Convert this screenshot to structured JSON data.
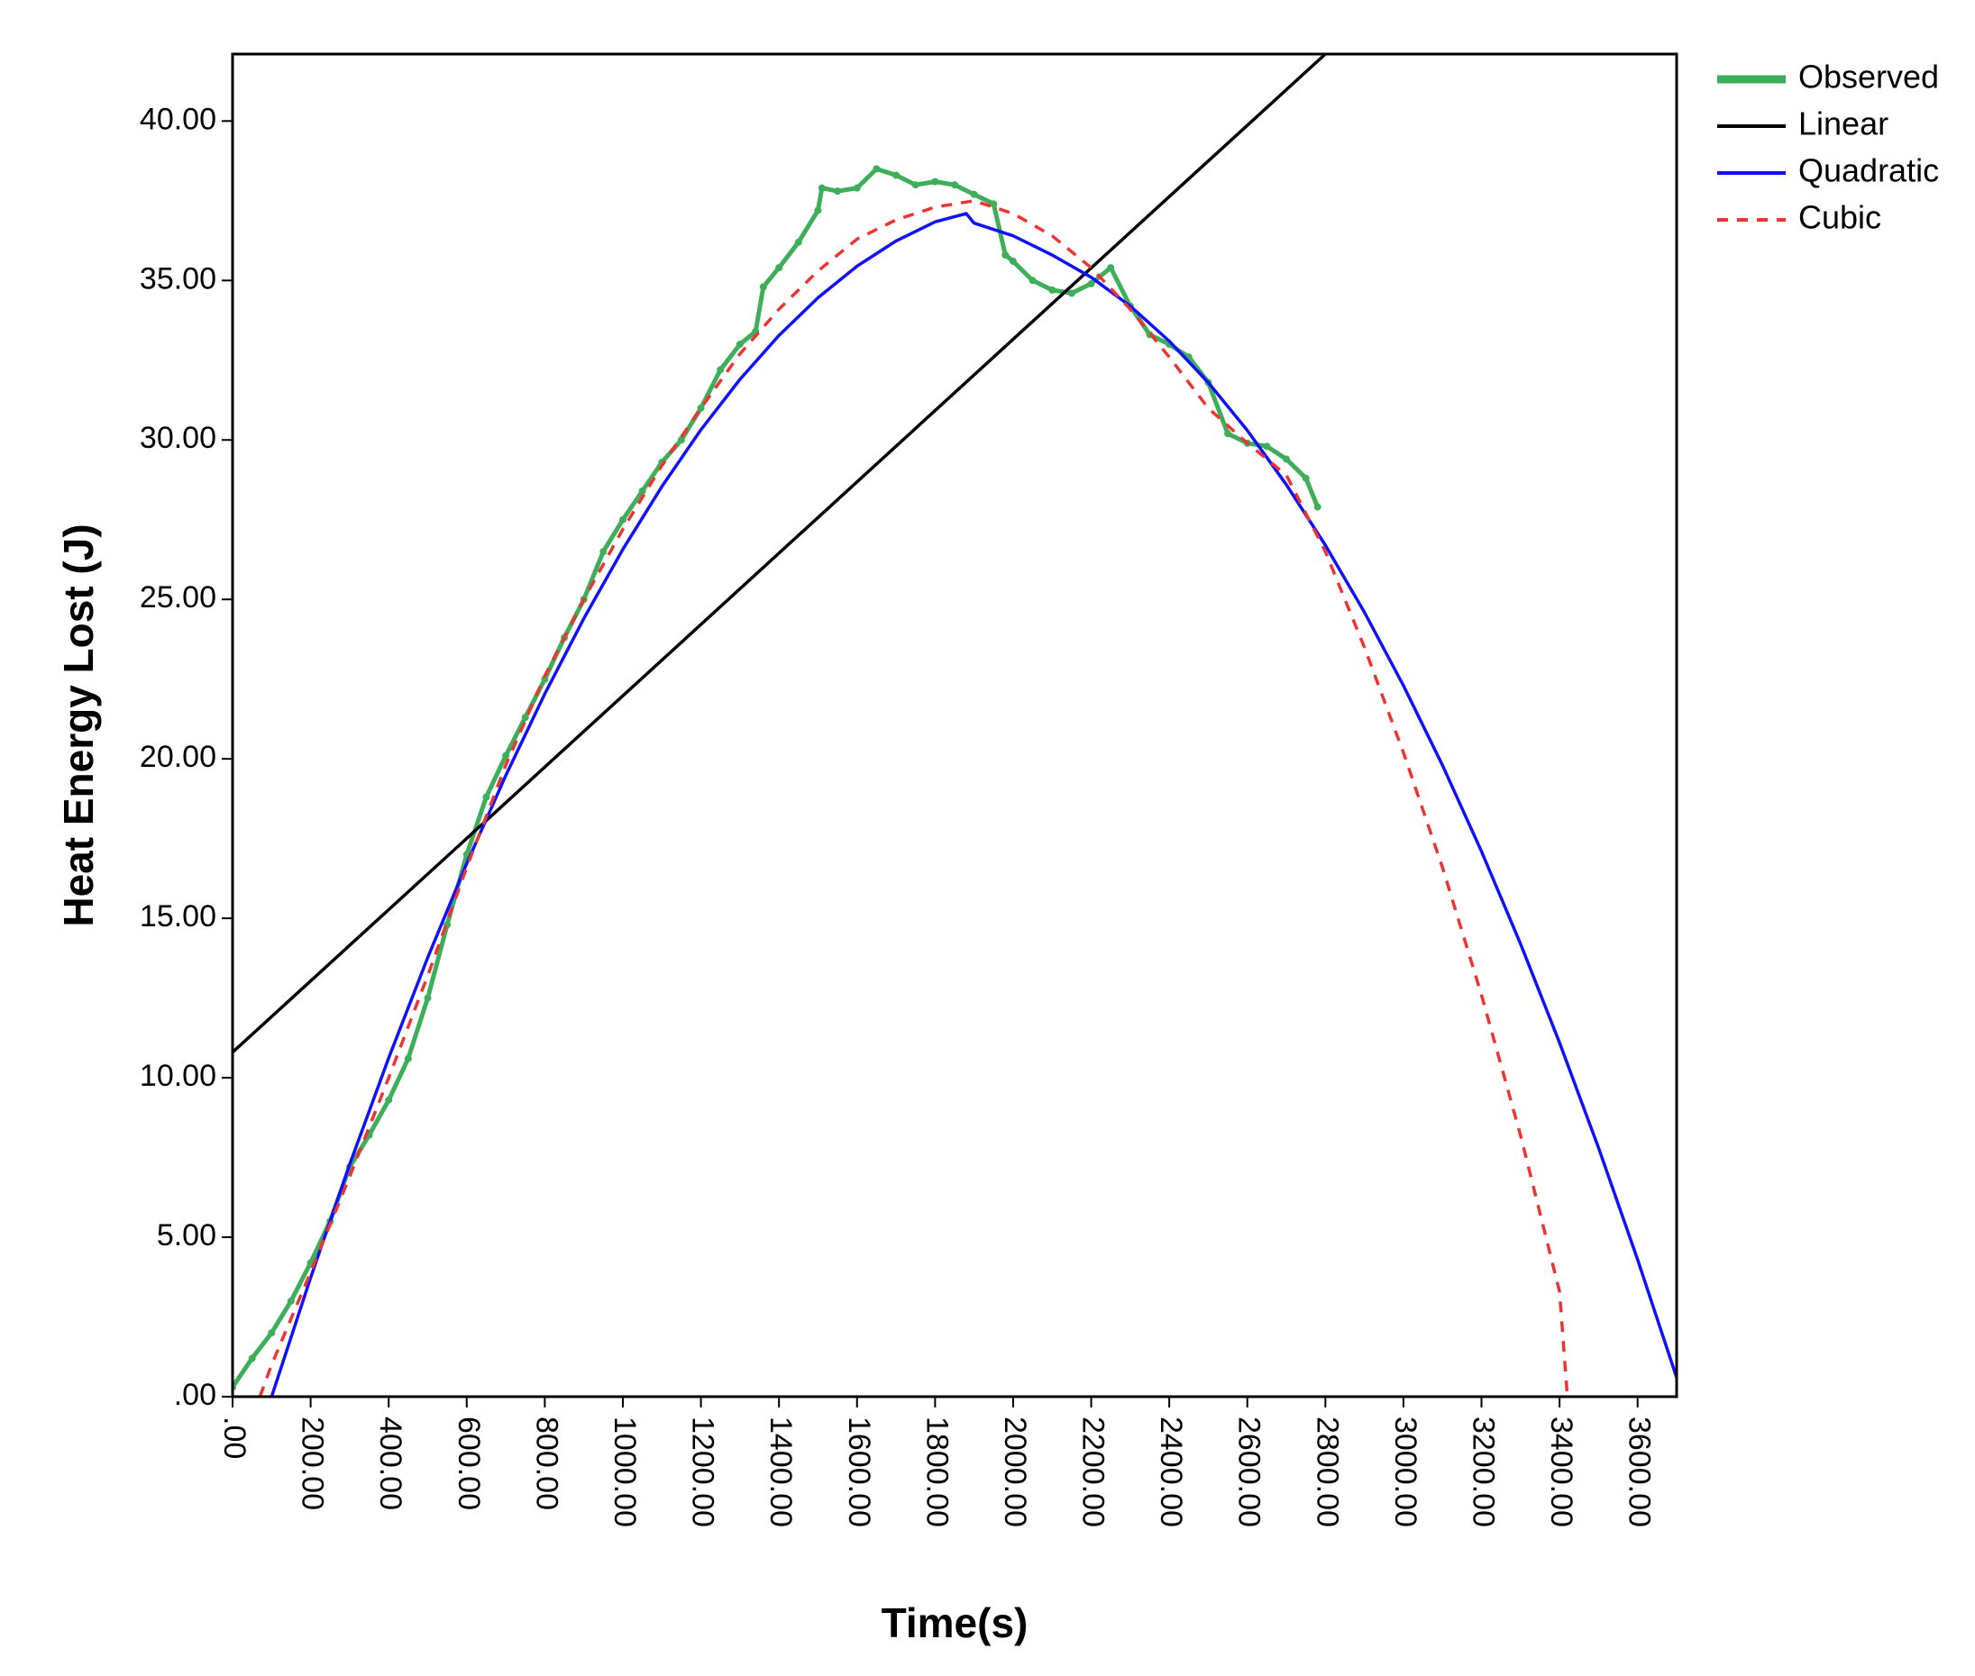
{
  "chart_data": {
    "type": "line",
    "title": "",
    "xlabel": "Time(s)",
    "ylabel": "Heat Energy Lost (J)",
    "xlim": [
      0,
      3700
    ],
    "ylim": [
      0,
      42.1
    ],
    "grid": false,
    "legend_position": "top-right",
    "x_ticks": [
      0,
      200,
      400,
      600,
      800,
      1000,
      1200,
      1400,
      1600,
      1800,
      2000,
      2200,
      2400,
      2600,
      2800,
      3000,
      3200,
      3400,
      3600
    ],
    "x_tick_labels": [
      ".00",
      "200.00",
      "400.00",
      "600.00",
      "800.00",
      "1000.00",
      "1200.00",
      "1400.00",
      "1600.00",
      "1800.00",
      "2000.00",
      "2200.00",
      "2400.00",
      "2600.00",
      "2800.00",
      "3000.00",
      "3200.00",
      "3400.00",
      "3600.00"
    ],
    "y_ticks": [
      0,
      5,
      10,
      15,
      20,
      25,
      30,
      35,
      40
    ],
    "y_tick_labels": [
      ".00",
      "5.00",
      "10.00",
      "15.00",
      "20.00",
      "25.00",
      "30.00",
      "35.00",
      "40.00"
    ],
    "series": [
      {
        "name": "Observed",
        "color": "#3fae5a",
        "style": "scatter",
        "x": [
          0,
          50,
          100,
          150,
          200,
          250,
          300,
          350,
          400,
          450,
          500,
          550,
          600,
          650,
          700,
          750,
          800,
          850,
          900,
          950,
          1000,
          1050,
          1100,
          1150,
          1200,
          1250,
          1300,
          1340,
          1360,
          1400,
          1450,
          1500,
          1510,
          1550,
          1600,
          1650,
          1700,
          1750,
          1800,
          1850,
          1900,
          1950,
          1980,
          2000,
          2050,
          2100,
          2150,
          2200,
          2250,
          2300,
          2350,
          2400,
          2450,
          2500,
          2550,
          2600,
          2650,
          2700,
          2750,
          2780
        ],
        "y": [
          0.3,
          1.2,
          2.0,
          3.0,
          4.2,
          5.5,
          7.2,
          8.2,
          9.3,
          10.6,
          12.5,
          14.8,
          17.0,
          18.8,
          20.1,
          21.3,
          22.5,
          23.8,
          25.0,
          26.5,
          27.5,
          28.4,
          29.3,
          30.0,
          31.0,
          32.2,
          33.0,
          33.4,
          34.8,
          35.4,
          36.2,
          37.2,
          37.9,
          37.8,
          37.9,
          38.5,
          38.3,
          38.0,
          38.1,
          38.0,
          37.7,
          37.4,
          35.8,
          35.6,
          35.0,
          34.7,
          34.6,
          34.9,
          35.4,
          34.2,
          33.3,
          33.0,
          32.6,
          31.8,
          30.2,
          29.9,
          29.8,
          29.4,
          28.8,
          27.9
        ]
      },
      {
        "name": "Linear",
        "color": "#000000",
        "style": "solid",
        "x": [
          0,
          2800
        ],
        "y": [
          10.8,
          42.1
        ]
      },
      {
        "name": "Quadratic",
        "color": "#1010ff",
        "style": "solid",
        "x": [
          100,
          200,
          300,
          400,
          500,
          600,
          700,
          800,
          900,
          1000,
          1100,
          1200,
          1300,
          1400,
          1500,
          1600,
          1700,
          1800,
          1880,
          1900,
          2000,
          2100,
          2200,
          2300,
          2400,
          2500,
          2600,
          2700,
          2800,
          2900,
          3000,
          3100,
          3200,
          3300,
          3400,
          3500,
          3600,
          3700
        ],
        "y": [
          0,
          3.73,
          7.28,
          10.62,
          13.77,
          16.72,
          19.48,
          22.04,
          24.4,
          26.57,
          28.54,
          30.32,
          31.9,
          33.28,
          34.46,
          35.45,
          36.24,
          36.84,
          37.1,
          36.8,
          36.4,
          35.8,
          35.1,
          34.2,
          33.1,
          31.8,
          30.3,
          28.6,
          26.7,
          24.6,
          22.3,
          19.8,
          17.1,
          14.2,
          11.1,
          7.8,
          4.3,
          0.6
        ]
      },
      {
        "name": "Cubic",
        "color": "#ee3333",
        "style": "dashed",
        "x": [
          70,
          100,
          200,
          300,
          400,
          500,
          600,
          700,
          800,
          900,
          1000,
          1100,
          1200,
          1300,
          1400,
          1500,
          1600,
          1700,
          1800,
          1900,
          2000,
          2100,
          2200,
          2300,
          2400,
          2500,
          2600,
          2700,
          2800,
          2900,
          3000,
          3100,
          3200,
          3300,
          3400,
          3420
        ],
        "y": [
          0,
          1.0,
          3.9,
          6.9,
          10.0,
          13.2,
          16.6,
          19.8,
          22.6,
          25.0,
          27.2,
          29.2,
          31.0,
          32.7,
          34.1,
          35.3,
          36.3,
          36.9,
          37.3,
          37.5,
          37.1,
          36.4,
          35.4,
          34.1,
          32.6,
          31.0,
          29.9,
          28.9,
          26.5,
          23.5,
          20.2,
          16.6,
          12.6,
          8.2,
          3.3,
          0
        ]
      }
    ],
    "legend": [
      {
        "name": "Observed",
        "color": "#3fae5a",
        "style": "thick"
      },
      {
        "name": "Linear",
        "color": "#000000",
        "style": "solid"
      },
      {
        "name": "Quadratic",
        "color": "#1010ff",
        "style": "solid"
      },
      {
        "name": "Cubic",
        "color": "#ee3333",
        "style": "dashed"
      }
    ]
  }
}
